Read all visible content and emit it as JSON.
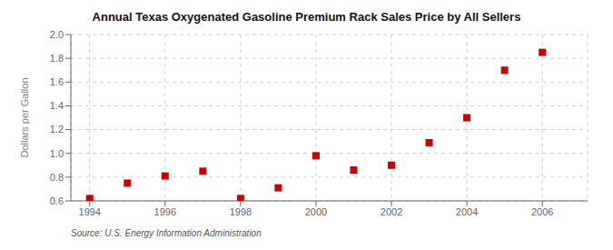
{
  "chart_data": {
    "type": "scatter",
    "title": "Annual Texas Oxygenated Gasoline Premium Rack Sales Price by All Sellers",
    "ylabel": "Dollars per Gallon",
    "annotation": "Source: U.S. Energy Information Administration",
    "x": [
      1994,
      1995,
      1996,
      1997,
      1998,
      1999,
      2000,
      2001,
      2002,
      2003,
      2004,
      2005,
      2006
    ],
    "values": [
      0.62,
      0.75,
      0.81,
      0.85,
      0.62,
      0.71,
      0.98,
      0.86,
      0.9,
      1.09,
      1.3,
      1.7,
      1.85
    ],
    "color": "#cc0000",
    "marker": "square",
    "xlim": [
      1993.5,
      2007.2
    ],
    "ylim": [
      0.6,
      2.0
    ],
    "xticks": [
      1994,
      1996,
      1998,
      2000,
      2002,
      2004,
      2006
    ],
    "yticks": [
      0.6,
      0.8,
      {
        "value": 1.0,
        "label": "1.0"
      },
      1.2,
      1.4,
      1.6,
      1.8,
      {
        "value": 2.0,
        "label": "2.0"
      }
    ],
    "grid": true
  }
}
